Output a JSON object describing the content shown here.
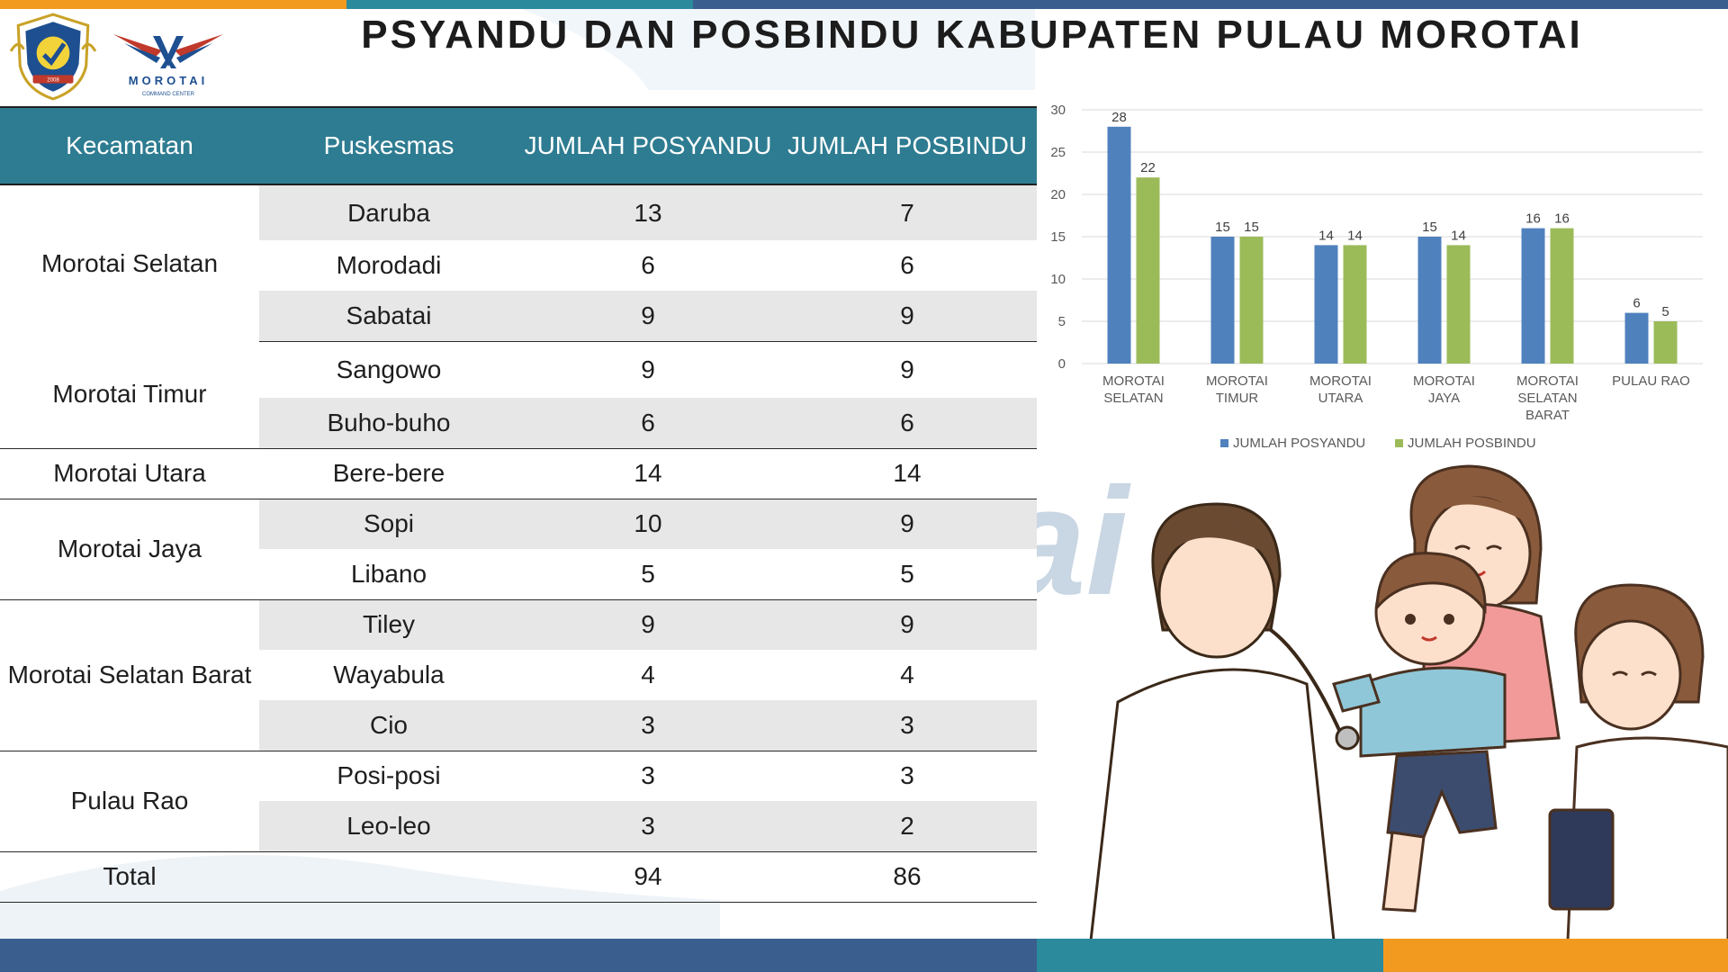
{
  "header": {
    "title": "PSYANDU DAN POSBINDU KABUPATEN PULAU MOROTAI",
    "crest_year": "2008",
    "logo_name": "MOROTAI",
    "logo_sub": "COMMAND CENTER"
  },
  "colors": {
    "header_bg": "#2e7c91",
    "bar_blue": "#4f81bd",
    "bar_green": "#9bbb59",
    "footer_blue": "#3a5f8f",
    "footer_teal": "#2b8a9c",
    "footer_orange": "#f29a1f"
  },
  "table": {
    "headers": [
      "Kecamatan",
      "Puskesmas",
      "JUMLAH POSYANDU",
      "JUMLAH POSBINDU"
    ],
    "groups": [
      {
        "kecamatan": "Morotai Selatan",
        "rows": [
          {
            "puskesmas": "Daruba",
            "posyandu": "13",
            "posbindu": "7"
          },
          {
            "puskesmas": "Morodadi",
            "posyandu": "6",
            "posbindu": "6"
          },
          {
            "puskesmas": "Sabatai",
            "posyandu": "9",
            "posbindu": "9"
          }
        ]
      },
      {
        "kecamatan": "Morotai Timur",
        "rows": [
          {
            "puskesmas": "Sangowo",
            "posyandu": "9",
            "posbindu": "9"
          },
          {
            "puskesmas": "Buho-buho",
            "posyandu": "6",
            "posbindu": "6"
          }
        ]
      },
      {
        "kecamatan": "Morotai Utara",
        "rows": [
          {
            "puskesmas": "Bere-bere",
            "posyandu": "14",
            "posbindu": "14"
          }
        ]
      },
      {
        "kecamatan": "Morotai Jaya",
        "rows": [
          {
            "puskesmas": "Sopi",
            "posyandu": "10",
            "posbindu": "9"
          },
          {
            "puskesmas": "Libano",
            "posyandu": "5",
            "posbindu": "5"
          }
        ]
      },
      {
        "kecamatan": "Morotai Selatan Barat",
        "rows": [
          {
            "puskesmas": "Tiley",
            "posyandu": "9",
            "posbindu": "9"
          },
          {
            "puskesmas": "Wayabula",
            "posyandu": "4",
            "posbindu": "4"
          },
          {
            "puskesmas": "Cio",
            "posyandu": "3",
            "posbindu": "3"
          }
        ]
      },
      {
        "kecamatan": "Pulau Rao",
        "rows": [
          {
            "puskesmas": "Posi-posi",
            "posyandu": "3",
            "posbindu": "3"
          },
          {
            "puskesmas": "Leo-leo",
            "posyandu": "3",
            "posbindu": "2"
          }
        ]
      }
    ],
    "total": {
      "label": "Total",
      "puskesmas": "",
      "posyandu": "94",
      "posbindu": "86"
    }
  },
  "chart_data": {
    "type": "bar",
    "categories": [
      [
        "MOROTAI",
        "SELATAN"
      ],
      [
        "MOROTAI",
        "TIMUR"
      ],
      [
        "MOROTAI",
        "UTARA"
      ],
      [
        "MOROTAI",
        "JAYA"
      ],
      [
        "MOROTAI",
        "SELATAN",
        "BARAT"
      ],
      [
        "PULAU RAO"
      ]
    ],
    "series": [
      {
        "name": "JUMLAH POSYANDU",
        "values": [
          28,
          15,
          14,
          15,
          16,
          6
        ],
        "color": "#4f81bd"
      },
      {
        "name": "JUMLAH POSBINDU",
        "values": [
          22,
          15,
          14,
          14,
          16,
          5
        ],
        "color": "#9bbb59"
      }
    ],
    "yticks": [
      0,
      5,
      10,
      15,
      20,
      25,
      30
    ],
    "ylim": [
      0,
      30
    ],
    "grid": true,
    "legend": "bottom",
    "data_labels": true
  }
}
